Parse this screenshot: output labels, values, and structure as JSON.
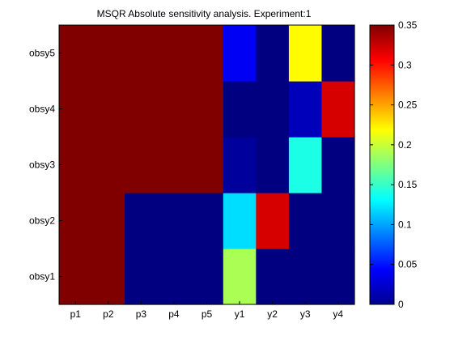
{
  "chart_data": {
    "type": "heatmap",
    "title": "MSQR Absolute sensitivity analysis. Experiment:1",
    "xlabel": "",
    "ylabel": "",
    "x_categories": [
      "p1",
      "p2",
      "p3",
      "p4",
      "p5",
      "y1",
      "y2",
      "y3",
      "y4"
    ],
    "y_categories": [
      "obsy1",
      "obsy2",
      "obsy3",
      "obsy4",
      "obsy5"
    ],
    "values": [
      [
        0.35,
        0.35,
        0.0,
        0.0,
        0.0,
        0.19,
        0.0,
        0.0,
        0.0
      ],
      [
        0.35,
        0.35,
        0.0,
        0.0,
        0.0,
        0.12,
        0.32,
        0.0,
        0.0
      ],
      [
        0.35,
        0.35,
        0.35,
        0.35,
        0.35,
        0.01,
        0.0,
        0.14,
        0.0
      ],
      [
        0.35,
        0.35,
        0.35,
        0.35,
        0.35,
        0.0,
        0.0,
        0.02,
        0.32
      ],
      [
        0.35,
        0.35,
        0.35,
        0.35,
        0.35,
        0.04,
        0.0,
        0.22,
        0.0
      ]
    ],
    "colormap": "jet",
    "clim": [
      0,
      0.35
    ],
    "colorbar": {
      "ticks": [
        0,
        0.05,
        0.1,
        0.15,
        0.2,
        0.25,
        0.3,
        0.35
      ],
      "tick_labels": [
        "0",
        "0.05",
        "0.1",
        "0.15",
        "0.2",
        "0.25",
        "0.3",
        "0.35"
      ],
      "placement": "right"
    },
    "grid": false
  }
}
